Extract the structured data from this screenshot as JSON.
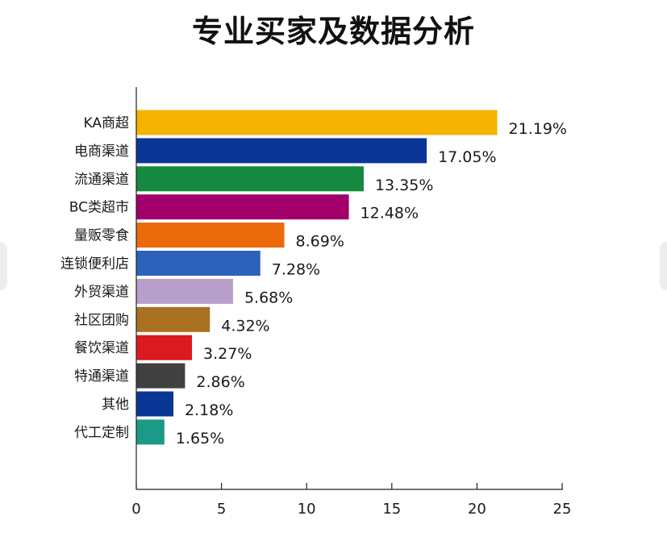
{
  "chart_data": {
    "type": "bar",
    "orientation": "horizontal",
    "title": "专业买家及数据分析",
    "categories": [
      "KA商超",
      "电商渠道",
      "流通渠道",
      "BC类超市",
      "量贩零食",
      "连锁便利店",
      "外贸渠道",
      "社区团购",
      "餐饮渠道",
      "特通渠道",
      "其他",
      "代工定制"
    ],
    "values": [
      21.19,
      17.05,
      13.35,
      12.48,
      8.69,
      7.28,
      5.68,
      4.32,
      3.27,
      2.86,
      2.18,
      1.65
    ],
    "value_labels": [
      "21.19%",
      "17.05%",
      "13.35%",
      "12.48%",
      "8.69%",
      "7.28%",
      "5.68%",
      "4.32%",
      "3.27%",
      "2.86%",
      "2.18%",
      "1.65%"
    ],
    "colors": [
      "#F5B301",
      "#0A3696",
      "#14893F",
      "#A1006B",
      "#EB6A0C",
      "#2C62BA",
      "#B89FCB",
      "#A9711F",
      "#DA1A1E",
      "#404040",
      "#0A3696",
      "#1B9A87"
    ],
    "xlim": [
      0,
      25
    ],
    "xticks": [
      0,
      5,
      10,
      15,
      20,
      25
    ],
    "xtick_labels": [
      "0",
      "5",
      "10",
      "15",
      "20",
      "25"
    ],
    "xlabel": "",
    "ylabel": "",
    "grid": false,
    "legend": "none"
  }
}
